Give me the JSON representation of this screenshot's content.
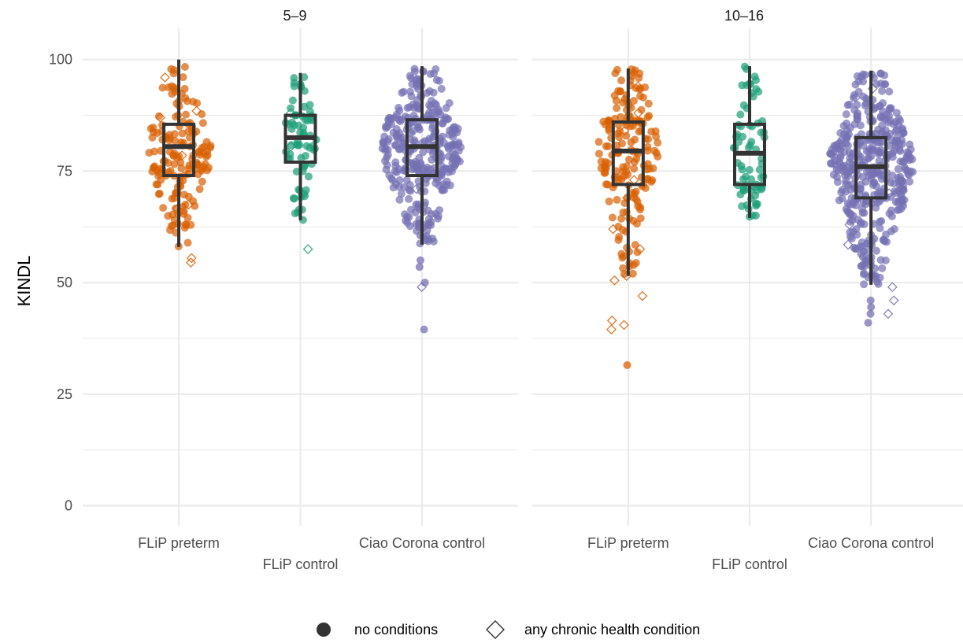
{
  "chart_data": {
    "type": "scatter",
    "ylabel": "KINDL",
    "xlabel": "",
    "ylim": [
      0,
      100
    ],
    "yticks": [
      0,
      25,
      50,
      75,
      100
    ],
    "grid": true,
    "legend_position": "bottom",
    "categories": [
      "FLiP preterm",
      "FLiP control",
      "Ciao Corona control"
    ],
    "colors": {
      "FLiP preterm": "#D95F02",
      "FLiP control": "#1B9E77",
      "Ciao Corona control": "#7570B3",
      "box": "#333333"
    },
    "legend": [
      {
        "shape": "circle",
        "label": "no conditions"
      },
      {
        "shape": "diamond",
        "label": "any chronic health condition"
      }
    ],
    "panels": [
      {
        "label": "5–9",
        "groups": [
          {
            "name": "FLiP preterm",
            "box": {
              "whisker_low": 58,
              "q1": 74,
              "median": 80.5,
              "q3": 85.5,
              "whisker_high": 100
            },
            "range": [
              54,
              100
            ],
            "n_points": 160,
            "spread": 0.27,
            "outliers_condition": [
              54.5,
              55.5,
              66.5,
              67.5,
              78.5,
              87,
              88.5,
              96
            ]
          },
          {
            "name": "FLiP control",
            "box": {
              "whisker_low": 64,
              "q1": 77,
              "median": 82.5,
              "q3": 87.5,
              "whisker_high": 97
            },
            "range": [
              63,
              98
            ],
            "n_points": 70,
            "spread": 0.13,
            "outliers_condition": [
              57.5,
              80.5,
              88
            ]
          },
          {
            "name": "Ciao Corona control",
            "box": {
              "whisker_low": 58.5,
              "q1": 74,
              "median": 80.5,
              "q3": 86.5,
              "whisker_high": 98.5
            },
            "range": [
              58.5,
              99
            ],
            "n_points": 330,
            "spread": 0.32,
            "outliers_no_condition": [
              39.5,
              50,
              53.5,
              55
            ],
            "outliers_condition": [
              49,
              71,
              95.5
            ]
          }
        ]
      },
      {
        "label": "10–16",
        "groups": [
          {
            "name": "FLiP preterm",
            "box": {
              "whisker_low": 51.5,
              "q1": 72,
              "median": 79.5,
              "q3": 86,
              "whisker_high": 98
            },
            "range": [
              45,
              100
            ],
            "n_points": 180,
            "spread": 0.24,
            "outliers_no_condition": [
              31.5
            ],
            "outliers_condition": [
              39.5,
              40.5,
              41.5,
              47,
              50.5,
              51.5,
              57.5,
              62,
              69,
              73,
              84,
              88,
              94
            ]
          },
          {
            "name": "FLiP control",
            "box": {
              "whisker_low": 64.5,
              "q1": 72,
              "median": 79,
              "q3": 85.5,
              "whisker_high": 98.5
            },
            "range": [
              64.5,
              99
            ],
            "n_points": 70,
            "spread": 0.13,
            "outliers_condition": []
          },
          {
            "name": "Ciao Corona control",
            "box": {
              "whisker_low": 49.5,
              "q1": 69,
              "median": 76,
              "q3": 82.5,
              "whisker_high": 97.5
            },
            "range": [
              45,
              98
            ],
            "n_points": 420,
            "spread": 0.34,
            "outliers_no_condition": [
              41,
              43,
              44.5,
              46
            ],
            "outliers_condition": [
              43,
              46,
              49,
              58.5,
              63,
              70,
              91.5,
              93.5
            ]
          }
        ]
      }
    ]
  }
}
